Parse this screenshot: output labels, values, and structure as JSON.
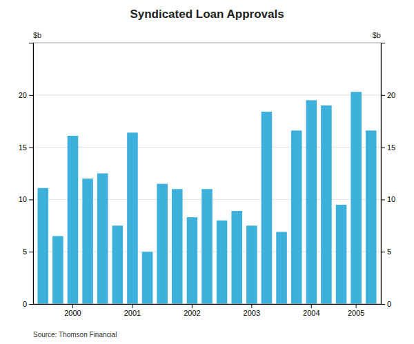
{
  "chart_data": {
    "type": "bar",
    "title": "Syndicated Loan Approvals",
    "ylabel": "$b",
    "y2label": "$b",
    "annotations": [
      "Source: Thomson Financial"
    ],
    "categories": [
      null,
      null,
      "2000",
      null,
      null,
      null,
      "2001",
      null,
      null,
      null,
      "2002",
      null,
      null,
      null,
      "2003",
      null,
      null,
      null,
      "2004",
      null,
      null,
      "2005",
      null
    ],
    "values": [
      11.1,
      6.5,
      16.1,
      12.0,
      12.5,
      7.5,
      16.4,
      5.0,
      11.5,
      11.0,
      8.3,
      11.0,
      8.0,
      8.9,
      7.5,
      18.4,
      6.9,
      16.6,
      19.5,
      19.0,
      9.5,
      20.3,
      16.6
    ],
    "color": "#3EB0DC",
    "ylim": [
      0,
      25
    ],
    "yticks": [
      0,
      5,
      10,
      15,
      20
    ],
    "y2lim": [
      0,
      25
    ],
    "y2ticks": [
      0,
      5,
      10,
      15,
      20
    ],
    "grid": true
  }
}
